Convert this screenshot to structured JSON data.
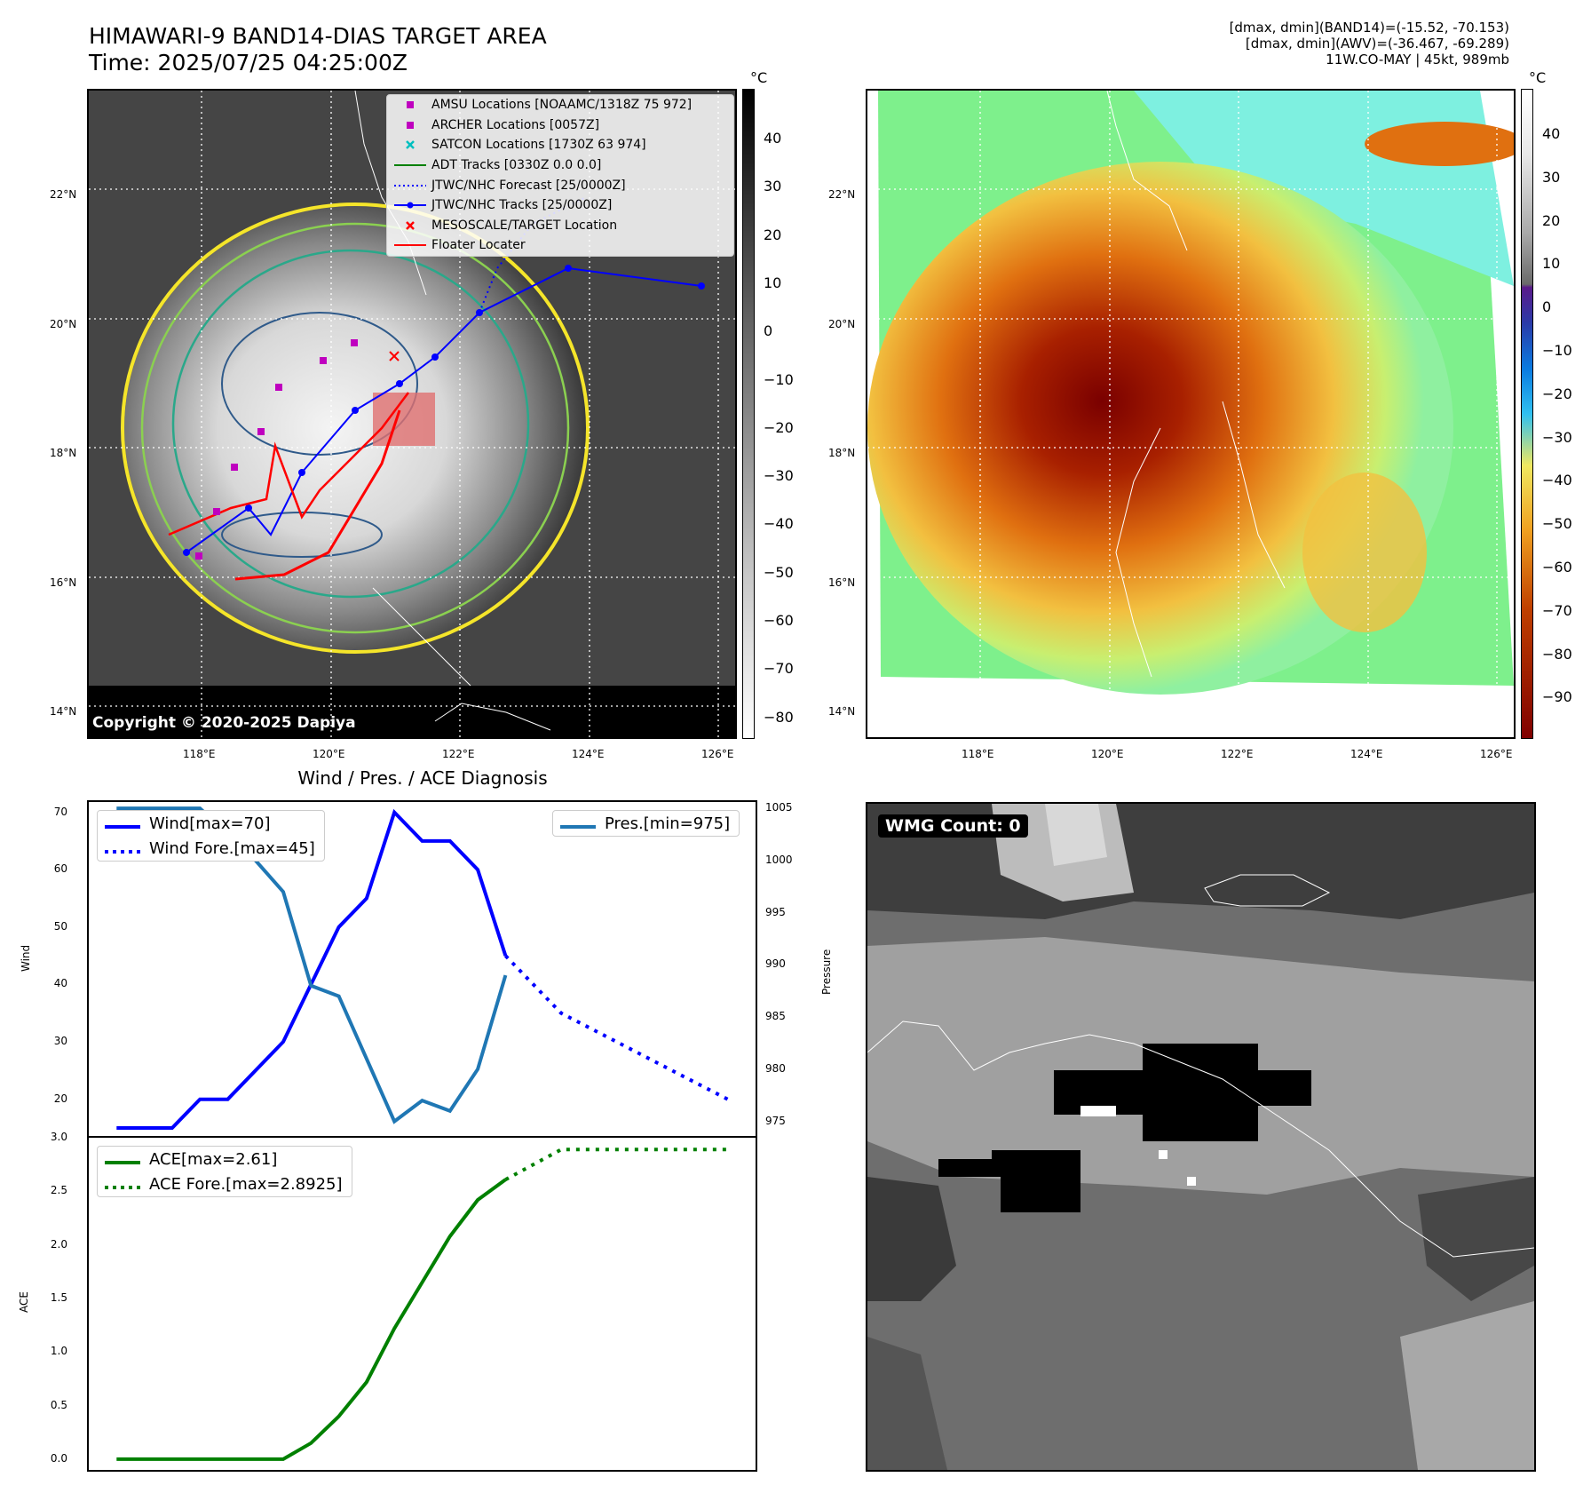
{
  "header": {
    "title_line1": "HIMAWARI-9 BAND14-DIAS TARGET AREA",
    "title_line2": "Time: 2025/07/25 04:25:00Z",
    "info_line1": "[dmax, dmin](BAND14)=(-15.52, -70.153)",
    "info_line2": "[dmax, dmin](AWV)=(-36.467, -69.289)",
    "info_line3": "11W.CO-MAY | 45kt, 989mb"
  },
  "map_axes": {
    "lat_ticks": [
      "22°N",
      "20°N",
      "18°N",
      "16°N",
      "14°N"
    ],
    "lon_ticks": [
      "118°E",
      "120°E",
      "122°E",
      "124°E",
      "126°E"
    ]
  },
  "colorbar_ir": {
    "unit": "°C",
    "ticks": [
      "40",
      "30",
      "20",
      "10",
      "0",
      "−10",
      "−20",
      "−30",
      "−40",
      "−50",
      "−60",
      "−70",
      "−80"
    ]
  },
  "colorbar_wv": {
    "unit": "°C",
    "ticks": [
      "40",
      "30",
      "20",
      "10",
      "0",
      "−10",
      "−20",
      "−30",
      "−40",
      "−50",
      "−60",
      "−70",
      "−80",
      "−90"
    ]
  },
  "legend_map": [
    {
      "label": "AMSU Locations [NOAAMC/1318Z 75 972]",
      "kind": "square",
      "color": "#bf00bf"
    },
    {
      "label": "ARCHER Locations [0057Z]",
      "kind": "square",
      "color": "#bf00bf"
    },
    {
      "label": "SATCON Locations [1730Z 63 974]",
      "kind": "x",
      "color": "#00bfbf"
    },
    {
      "label": "ADT Tracks [0330Z 0.0 0.0]",
      "kind": "line",
      "color": "#008000"
    },
    {
      "label": "JTWC/NHC Forecast [25/0000Z]",
      "kind": "dotted",
      "color": "#0000ff"
    },
    {
      "label": "JTWC/NHC Tracks [25/0000Z]",
      "kind": "line-dot",
      "color": "#0000ff"
    },
    {
      "label": "MESOSCALE/TARGET Location",
      "kind": "x",
      "color": "#ff0000"
    },
    {
      "label": "Floater Locater",
      "kind": "line",
      "color": "#ff0000"
    }
  ],
  "copyright": "Copyright © 2020-2025 Dapiya",
  "wmg": {
    "label": "WMG Count: 0"
  },
  "chart_data": [
    {
      "type": "line",
      "title": "Wind / Pres. / ACE Diagnosis",
      "ylabel": "Wind",
      "y2label": "Pressure",
      "ylim": [
        13.6,
        71.8
      ],
      "y2lim": [
        973.6,
        1005.6
      ],
      "yticks": [
        20,
        30,
        40,
        50,
        60,
        70
      ],
      "y2ticks": [
        975,
        980,
        985,
        990,
        995,
        1000,
        1005
      ],
      "series": [
        {
          "name": "Wind[max=70]",
          "color": "#0000ff",
          "style": "solid",
          "values": [
            [
              0,
              15
            ],
            [
              2,
              15
            ],
            [
              3,
              20
            ],
            [
              4,
              20
            ],
            [
              6,
              30
            ],
            [
              8,
              50
            ],
            [
              9,
              55
            ],
            [
              10,
              70
            ],
            [
              11,
              65
            ],
            [
              12,
              65
            ],
            [
              13,
              60
            ],
            [
              14,
              45
            ]
          ]
        },
        {
          "name": "Wind Fore.[max=45]",
          "color": "#0000ff",
          "style": "dotted",
          "values": [
            [
              14,
              45
            ],
            [
              16,
              35
            ],
            [
              18,
              30
            ],
            [
              20,
              25
            ],
            [
              22,
              20
            ]
          ]
        },
        {
          "name": "Pres.[min=975]",
          "color": "#1f77b4",
          "style": "solid",
          "axis": "right",
          "values": [
            [
              0,
              1005
            ],
            [
              3,
              1005
            ],
            [
              5,
              1000
            ],
            [
              6,
              997
            ],
            [
              7,
              988
            ],
            [
              8,
              987
            ],
            [
              10,
              975
            ],
            [
              11,
              977
            ],
            [
              12,
              976
            ],
            [
              13,
              980
            ],
            [
              14,
              989
            ]
          ]
        }
      ]
    },
    {
      "type": "line",
      "ylabel": "ACE",
      "ylim": [
        -0.1,
        3.0
      ],
      "yticks": [
        "0.0",
        "0.5",
        "1.0",
        "1.5",
        "2.0",
        "2.5",
        "3.0"
      ],
      "series": [
        {
          "name": "ACE[max=2.61]",
          "color": "#008000",
          "style": "solid",
          "values": [
            [
              0,
              0
            ],
            [
              6,
              0
            ],
            [
              7,
              0.15
            ],
            [
              8,
              0.4
            ],
            [
              9,
              0.72
            ],
            [
              10,
              1.22
            ],
            [
              11,
              1.65
            ],
            [
              12,
              2.08
            ],
            [
              13,
              2.42
            ],
            [
              14,
              2.61
            ]
          ]
        },
        {
          "name": "ACE Fore.[max=2.8925]",
          "color": "#008000",
          "style": "dotted",
          "values": [
            [
              14,
              2.61
            ],
            [
              16,
              2.89
            ],
            [
              22,
              2.89
            ]
          ]
        }
      ]
    }
  ]
}
